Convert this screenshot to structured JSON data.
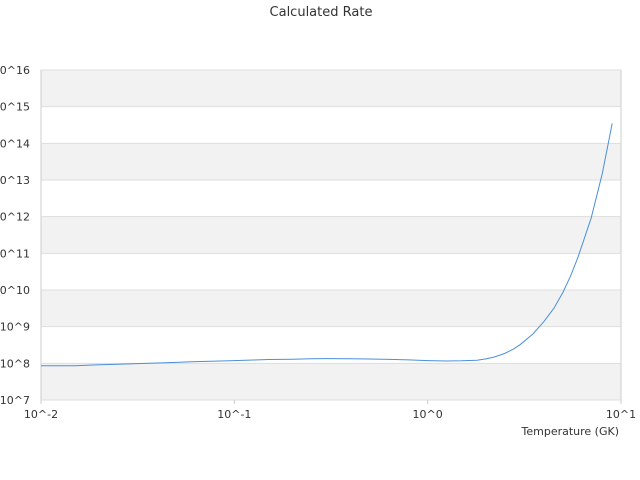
{
  "chart_data": {
    "type": "line",
    "title": "Calculated Rate",
    "xlabel": "Temperature (GK)",
    "ylabel": "",
    "x_scale": "log",
    "y_scale": "log",
    "xlim": [
      0.01,
      10
    ],
    "ylim": [
      10000000,
      10000000000000000
    ],
    "x_ticks": [
      {
        "value": 0.01,
        "label": "10^-2"
      },
      {
        "value": 0.1,
        "label": "10^-1"
      },
      {
        "value": 1,
        "label": "10^0"
      },
      {
        "value": 10,
        "label": "10^1"
      }
    ],
    "y_ticks": [
      {
        "value": 10000000,
        "label": "10^7"
      },
      {
        "value": 100000000,
        "label": "10^8"
      },
      {
        "value": 1000000000,
        "label": "10^9"
      },
      {
        "value": 10000000000,
        "label": "10^10"
      },
      {
        "value": 100000000000,
        "label": "10^11"
      },
      {
        "value": 1000000000000,
        "label": "10^12"
      },
      {
        "value": 10000000000000,
        "label": "10^13"
      },
      {
        "value": 100000000000000,
        "label": "10^14"
      },
      {
        "value": 1000000000000000,
        "label": "10^15"
      },
      {
        "value": 10000000000000000,
        "label": "10^16"
      }
    ],
    "grid": "alternating horizontal bands",
    "legend": "none",
    "colors": {
      "line": "#4a90d9",
      "band": "#f2f2f2",
      "axis": "#cccccc"
    },
    "series": [
      {
        "x": [
          0.01,
          0.0125,
          0.015,
          0.02,
          0.025,
          0.03,
          0.04,
          0.05,
          0.06,
          0.08,
          0.1,
          0.125,
          0.15,
          0.2,
          0.25,
          0.3,
          0.4,
          0.5,
          0.6,
          0.8,
          1.0,
          1.25,
          1.5,
          1.8,
          2.0,
          2.2,
          2.5,
          2.8,
          3.0,
          3.5,
          4.0,
          4.5,
          5.0,
          5.5,
          6.0,
          7.0,
          8.0,
          9.0
        ],
        "y": [
          86000000,
          86000000,
          86000000,
          91000000,
          95000000,
          97000000,
          102000000,
          106000000,
          110000000,
          115000000,
          119000000,
          123000000,
          127000000,
          130000000,
          133000000,
          135000000,
          134000000,
          131000000,
          129000000,
          124000000,
          119000000,
          116000000,
          117000000,
          122000000,
          132000000,
          148000000,
          185000000,
          250000000,
          320000000,
          630000000,
          1400000000,
          3200000000,
          8500000000,
          25000000000,
          80000000000,
          900000000000,
          15000000000000,
          350000000000000
        ]
      }
    ]
  }
}
